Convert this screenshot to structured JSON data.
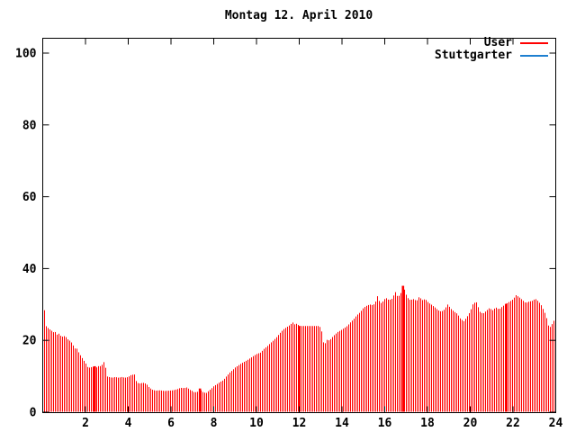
{
  "colors": {
    "background": "#ffffff",
    "axis": "#000000",
    "text": "#000000",
    "user_red": "#ff0000",
    "stuttgarter_blue": "#1e7fd0"
  },
  "legend": {
    "entries": [
      {
        "label": "User",
        "color": "#ff0000"
      },
      {
        "label": "Stuttgarter",
        "color": "#1e7fd0"
      }
    ]
  },
  "chart_data": {
    "type": "bar",
    "subtype": "impulses",
    "title": "Montag 12. April 2010",
    "xlabel": "",
    "ylabel": "",
    "grid": false,
    "legend_position": "top-right-inside",
    "x_axis": {
      "range": [
        0,
        24
      ],
      "ticks": [
        2,
        4,
        6,
        8,
        10,
        12,
        14,
        16,
        18,
        20,
        22,
        24
      ]
    },
    "y_axis": {
      "range": [
        0,
        100
      ],
      "ticks": [
        0,
        20,
        40,
        60,
        80,
        100
      ]
    },
    "bar_interval_hours": 0.0842,
    "series": [
      {
        "name": "User",
        "color": "#ff0000",
        "style": "impulses",
        "envelope_points": [
          [
            0.08,
            28.5
          ],
          [
            0.1,
            28.0
          ],
          [
            0.16,
            24.0
          ],
          [
            0.22,
            23.6
          ],
          [
            0.3,
            23.2
          ],
          [
            0.4,
            22.8
          ],
          [
            0.5,
            22.2
          ],
          [
            0.55,
            23.0
          ],
          [
            0.62,
            21.8
          ],
          [
            0.7,
            21.5
          ],
          [
            0.78,
            22.0
          ],
          [
            0.85,
            21.2
          ],
          [
            0.95,
            21.0
          ],
          [
            1.05,
            21.3
          ],
          [
            1.15,
            20.4
          ],
          [
            1.25,
            20.0
          ],
          [
            1.35,
            19.4
          ],
          [
            1.45,
            18.4
          ],
          [
            1.55,
            17.4
          ],
          [
            1.62,
            17.8
          ],
          [
            1.7,
            16.4
          ],
          [
            1.8,
            15.6
          ],
          [
            1.9,
            14.6
          ],
          [
            2.0,
            13.8
          ],
          [
            2.1,
            12.6
          ],
          [
            2.2,
            12.4
          ],
          [
            2.3,
            12.6
          ],
          [
            2.43,
            12.8
          ],
          [
            2.55,
            12.4
          ],
          [
            2.65,
            13.1
          ],
          [
            2.75,
            12.5
          ],
          [
            2.82,
            14.2
          ],
          [
            2.92,
            13.6
          ],
          [
            3.0,
            10.0
          ],
          [
            3.1,
            9.8
          ],
          [
            3.25,
            9.6
          ],
          [
            3.4,
            9.8
          ],
          [
            3.55,
            9.6
          ],
          [
            3.7,
            9.8
          ],
          [
            3.85,
            9.6
          ],
          [
            4.0,
            9.8
          ],
          [
            4.15,
            10.4
          ],
          [
            4.3,
            10.5
          ],
          [
            4.4,
            8.2
          ],
          [
            4.55,
            8.0
          ],
          [
            4.7,
            8.2
          ],
          [
            4.85,
            7.9
          ],
          [
            5.0,
            6.8
          ],
          [
            5.15,
            6.2
          ],
          [
            5.3,
            6.0
          ],
          [
            5.5,
            6.1
          ],
          [
            5.7,
            5.9
          ],
          [
            5.9,
            6.0
          ],
          [
            6.1,
            6.1
          ],
          [
            6.3,
            6.4
          ],
          [
            6.45,
            6.8
          ],
          [
            6.6,
            6.7
          ],
          [
            6.75,
            6.9
          ],
          [
            6.9,
            6.2
          ],
          [
            7.0,
            5.9
          ],
          [
            7.1,
            5.5
          ],
          [
            7.25,
            5.7
          ],
          [
            7.35,
            6.6
          ],
          [
            7.45,
            5.7
          ],
          [
            7.55,
            5.5
          ],
          [
            7.65,
            5.3
          ],
          [
            7.78,
            6.0
          ],
          [
            7.9,
            6.6
          ],
          [
            8.0,
            7.2
          ],
          [
            8.1,
            7.6
          ],
          [
            8.2,
            8.0
          ],
          [
            8.3,
            8.4
          ],
          [
            8.45,
            8.9
          ],
          [
            8.6,
            10.0
          ],
          [
            8.75,
            11.0
          ],
          [
            8.9,
            11.8
          ],
          [
            9.0,
            12.4
          ],
          [
            9.15,
            13.0
          ],
          [
            9.3,
            13.6
          ],
          [
            9.45,
            14.1
          ],
          [
            9.6,
            14.6
          ],
          [
            9.75,
            15.2
          ],
          [
            9.9,
            15.8
          ],
          [
            10.05,
            16.3
          ],
          [
            10.2,
            16.6
          ],
          [
            10.35,
            17.6
          ],
          [
            10.5,
            18.3
          ],
          [
            10.65,
            19.2
          ],
          [
            10.8,
            20.0
          ],
          [
            10.95,
            20.9
          ],
          [
            11.1,
            22.0
          ],
          [
            11.25,
            23.0
          ],
          [
            11.4,
            23.6
          ],
          [
            11.55,
            24.2
          ],
          [
            11.7,
            25.0
          ],
          [
            11.8,
            24.4
          ],
          [
            11.9,
            24.7
          ],
          [
            12.0,
            24.0
          ],
          [
            12.15,
            24.0
          ],
          [
            12.35,
            24.0
          ],
          [
            12.55,
            24.0
          ],
          [
            12.75,
            24.0
          ],
          [
            12.95,
            24.0
          ],
          [
            13.05,
            22.6
          ],
          [
            13.12,
            19.5
          ],
          [
            13.22,
            19.2
          ],
          [
            13.32,
            20.3
          ],
          [
            13.42,
            19.9
          ],
          [
            13.52,
            20.7
          ],
          [
            13.65,
            21.5
          ],
          [
            13.8,
            22.3
          ],
          [
            13.95,
            22.8
          ],
          [
            14.1,
            23.4
          ],
          [
            14.25,
            24.0
          ],
          [
            14.4,
            25.0
          ],
          [
            14.55,
            25.9
          ],
          [
            14.7,
            27.0
          ],
          [
            14.85,
            27.8
          ],
          [
            15.0,
            29.0
          ],
          [
            15.15,
            29.6
          ],
          [
            15.3,
            30.0
          ],
          [
            15.45,
            29.8
          ],
          [
            15.55,
            30.3
          ],
          [
            15.68,
            32.6
          ],
          [
            15.78,
            30.2
          ],
          [
            15.9,
            30.7
          ],
          [
            16.05,
            31.9
          ],
          [
            16.2,
            31.2
          ],
          [
            16.35,
            31.6
          ],
          [
            16.5,
            33.5
          ],
          [
            16.62,
            32.0
          ],
          [
            16.75,
            33.0
          ],
          [
            16.85,
            35.2
          ],
          [
            16.95,
            33.8
          ],
          [
            17.05,
            32.0
          ],
          [
            17.2,
            31.2
          ],
          [
            17.35,
            31.5
          ],
          [
            17.5,
            31.0
          ],
          [
            17.62,
            32.2
          ],
          [
            17.75,
            31.2
          ],
          [
            17.9,
            31.5
          ],
          [
            18.05,
            30.5
          ],
          [
            18.2,
            29.9
          ],
          [
            18.35,
            29.2
          ],
          [
            18.5,
            28.4
          ],
          [
            18.65,
            28.0
          ],
          [
            18.8,
            28.6
          ],
          [
            18.95,
            30.0
          ],
          [
            19.1,
            28.8
          ],
          [
            19.25,
            28.0
          ],
          [
            19.4,
            27.4
          ],
          [
            19.55,
            26.0
          ],
          [
            19.7,
            25.3
          ],
          [
            19.85,
            26.5
          ],
          [
            20.0,
            28.0
          ],
          [
            20.15,
            30.4
          ],
          [
            20.3,
            30.6
          ],
          [
            20.45,
            28.0
          ],
          [
            20.6,
            27.4
          ],
          [
            20.75,
            28.2
          ],
          [
            20.9,
            29.0
          ],
          [
            21.05,
            28.4
          ],
          [
            21.2,
            29.2
          ],
          [
            21.35,
            28.6
          ],
          [
            21.5,
            29.4
          ],
          [
            21.68,
            30.2
          ],
          [
            21.85,
            30.8
          ],
          [
            22.0,
            31.4
          ],
          [
            22.15,
            32.6
          ],
          [
            22.3,
            32.0
          ],
          [
            22.45,
            31.2
          ],
          [
            22.6,
            30.4
          ],
          [
            22.75,
            30.8
          ],
          [
            22.9,
            31.0
          ],
          [
            23.05,
            31.6
          ],
          [
            23.2,
            30.8
          ],
          [
            23.35,
            29.6
          ],
          [
            23.45,
            28.2
          ],
          [
            23.55,
            27.0
          ],
          [
            23.65,
            24.2
          ],
          [
            23.78,
            23.6
          ],
          [
            23.88,
            25.4
          ],
          [
            24.0,
            25.6
          ]
        ],
        "emphasis_hours": [
          2.43,
          7.35,
          12.0,
          16.85,
          21.68
        ]
      },
      {
        "name": "Stuttgarter",
        "color": "#1e7fd0",
        "style": "impulses",
        "visible_in_plot": false
      }
    ]
  }
}
